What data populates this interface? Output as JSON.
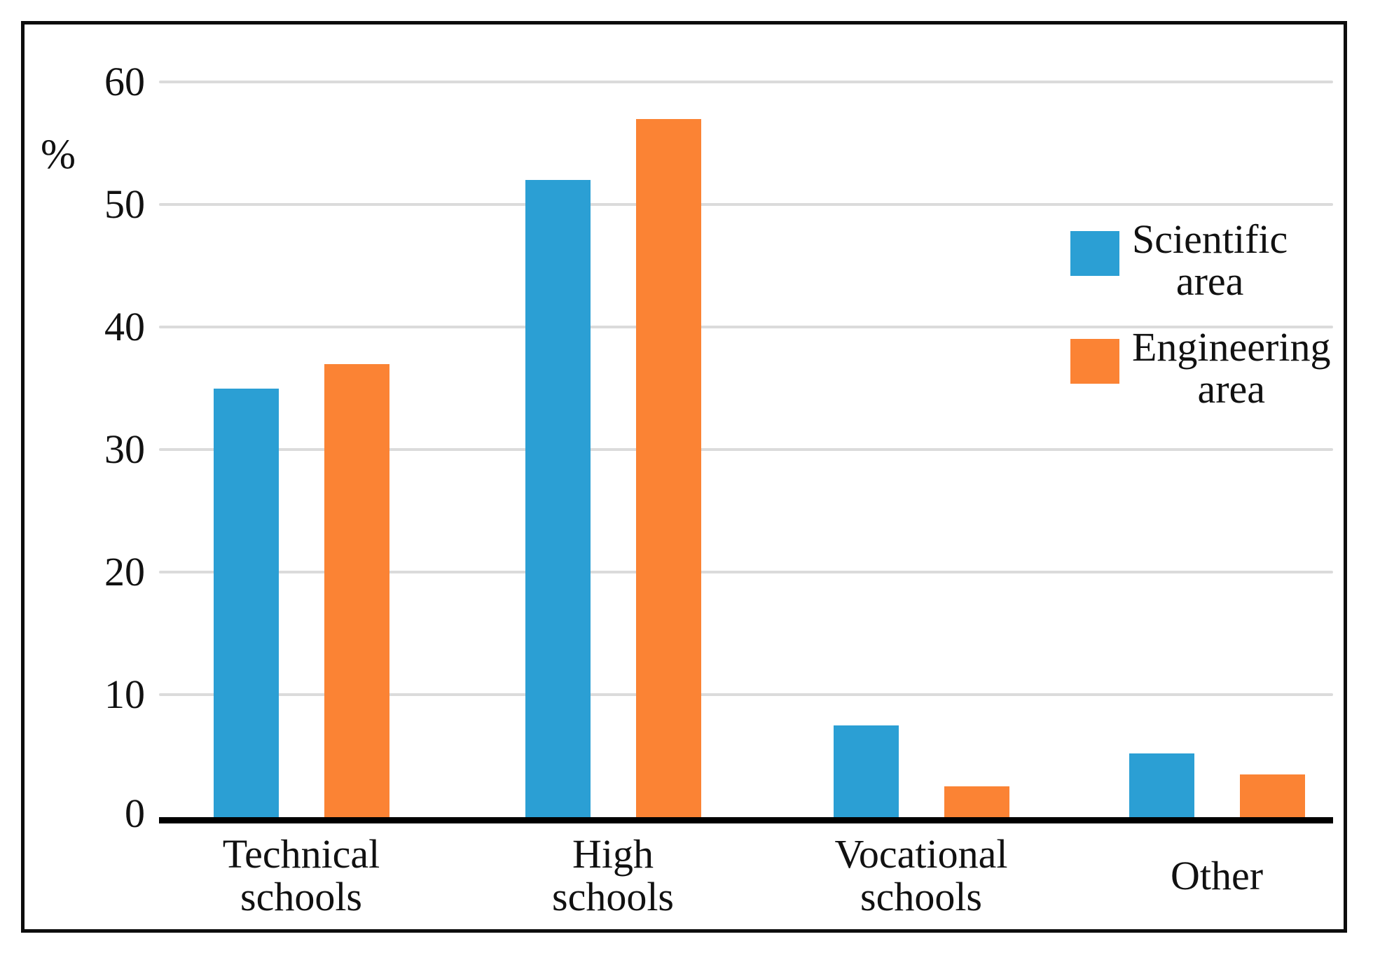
{
  "chart_data": {
    "type": "bar",
    "title": "",
    "ylabel": "%",
    "xlabel": "",
    "ylim": [
      0,
      60
    ],
    "yticks": [
      0,
      10,
      20,
      30,
      40,
      50,
      60
    ],
    "grid": true,
    "legend_position": "right-inside",
    "categories": [
      "Technical schools",
      "High schools",
      "Vocational schools",
      "Other"
    ],
    "category_lines": [
      [
        "Technical",
        "schools"
      ],
      [
        "High",
        "schools"
      ],
      [
        "Vocational",
        "schools"
      ],
      [
        "Other"
      ]
    ],
    "series": [
      {
        "name": "Scientific area",
        "name_lines": [
          "Scientific",
          "area"
        ],
        "color": "#2B9FD4",
        "values": [
          35,
          52,
          7.5,
          5.2
        ]
      },
      {
        "name": "Engineering area",
        "name_lines": [
          "Engineering",
          "area"
        ],
        "color": "#FB8334",
        "values": [
          37,
          57,
          2.5,
          3.5
        ]
      }
    ],
    "colors": {
      "gridline": "#dbdbdb",
      "axis": "#000000",
      "frame_border": "#0d0d0d",
      "text": "#111111",
      "background": "#ffffff"
    }
  }
}
